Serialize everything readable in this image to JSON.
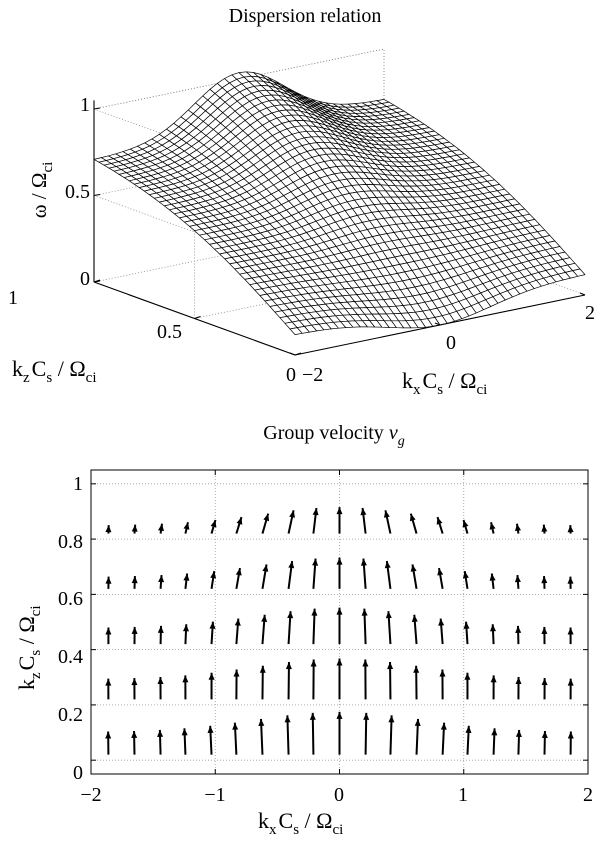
{
  "chart_data": [
    {
      "type": "surface",
      "title": "Dispersion relation",
      "zlabel": "ω / Ω",
      "zlabel_sub": "ci",
      "kz_label": [
        "k",
        "z",
        "C",
        "s",
        " / Ω",
        "ci"
      ],
      "kx_label": [
        "k",
        "x",
        "C",
        "s",
        " / Ω",
        "ci"
      ],
      "z_ticks": [
        "0",
        "0.5",
        "1"
      ],
      "kz_ticks": [
        "0",
        "0.5",
        "1"
      ],
      "kx_ticks": [
        "−2",
        "0",
        "2"
      ],
      "kx_range": [
        -2,
        2
      ],
      "kz_range": [
        0,
        1
      ],
      "z_range": [
        0,
        1
      ],
      "grid": true,
      "mesh_lines": 40
    },
    {
      "type": "quiver",
      "title": "Group velocity ",
      "title_v": "v",
      "title_sub": "g",
      "xlabel": [
        "k",
        "x",
        "C",
        "s",
        " / Ω",
        "ci"
      ],
      "ylabel": [
        "k",
        "z",
        "C",
        "s",
        " / Ω",
        "ci"
      ],
      "xlim": [
        -2,
        2
      ],
      "ylim": [
        -0.05,
        1.05
      ],
      "x_ticks": [
        "−2",
        "−1",
        "0",
        "1",
        "2"
      ],
      "y_ticks": [
        "0",
        "0.2",
        "0.4",
        "0.6",
        "0.8",
        "1"
      ],
      "grid": true,
      "arrow_x": [
        -1.86,
        -1.65,
        -1.44,
        -1.24,
        -1.03,
        -0.83,
        -0.62,
        -0.41,
        -0.21,
        0.0,
        0.21,
        0.41,
        0.62,
        0.83,
        1.03,
        1.24,
        1.44,
        1.65,
        1.86
      ],
      "arrow_y": [
        0.02,
        0.22,
        0.42,
        0.62,
        0.82
      ]
    }
  ]
}
